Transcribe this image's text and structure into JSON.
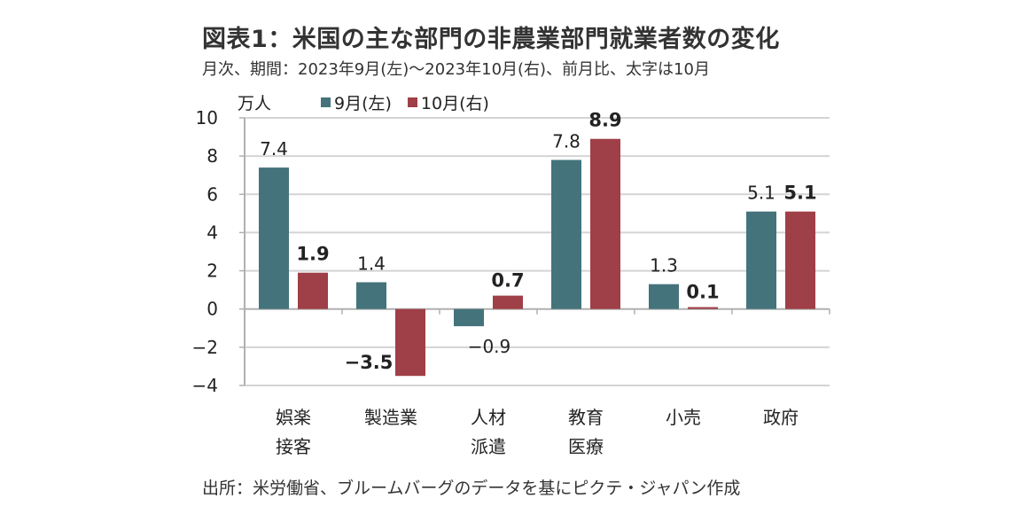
{
  "chart_data": {
    "type": "bar",
    "title": "図表1：米国の主な部門の非農業部門就業者数の変化",
    "subtitle": "月次、期間：2023年9月(左)～2023年10月(右)、前月比、太字は10月",
    "ylabel": "万人",
    "xlabel": "",
    "ylim": [
      -4,
      10
    ],
    "yticks": [
      "10",
      "8",
      "6",
      "4",
      "2",
      "0",
      "-2",
      "-4"
    ],
    "ytick_values": [
      10,
      8,
      6,
      4,
      2,
      0,
      -2,
      -4
    ],
    "grid": true,
    "legend_position": "top",
    "categories": [
      [
        "娯楽",
        "接客"
      ],
      [
        "製造業"
      ],
      [
        "人材",
        "派遣"
      ],
      [
        "教育",
        "医療"
      ],
      [
        "小売"
      ],
      [
        "政府"
      ]
    ],
    "series": [
      {
        "name": "9月(左)",
        "color": "#44737b",
        "bold_labels": false,
        "values": [
          7.4,
          1.4,
          -0.9,
          7.8,
          1.3,
          5.1
        ],
        "labels": [
          "7.4",
          "1.4",
          "-0.9",
          "7.8",
          "1.3",
          "5.1"
        ]
      },
      {
        "name": "10月(右)",
        "color": "#9f3f47",
        "bold_labels": true,
        "values": [
          1.9,
          -3.5,
          0.7,
          8.9,
          0.1,
          5.1
        ],
        "labels": [
          "1.9",
          "-3.5",
          "0.7",
          "8.9",
          "0.1",
          "5.1"
        ]
      }
    ],
    "source": "出所：米労働省、ブルームバーグのデータを基にピクテ・ジャパン作成"
  }
}
